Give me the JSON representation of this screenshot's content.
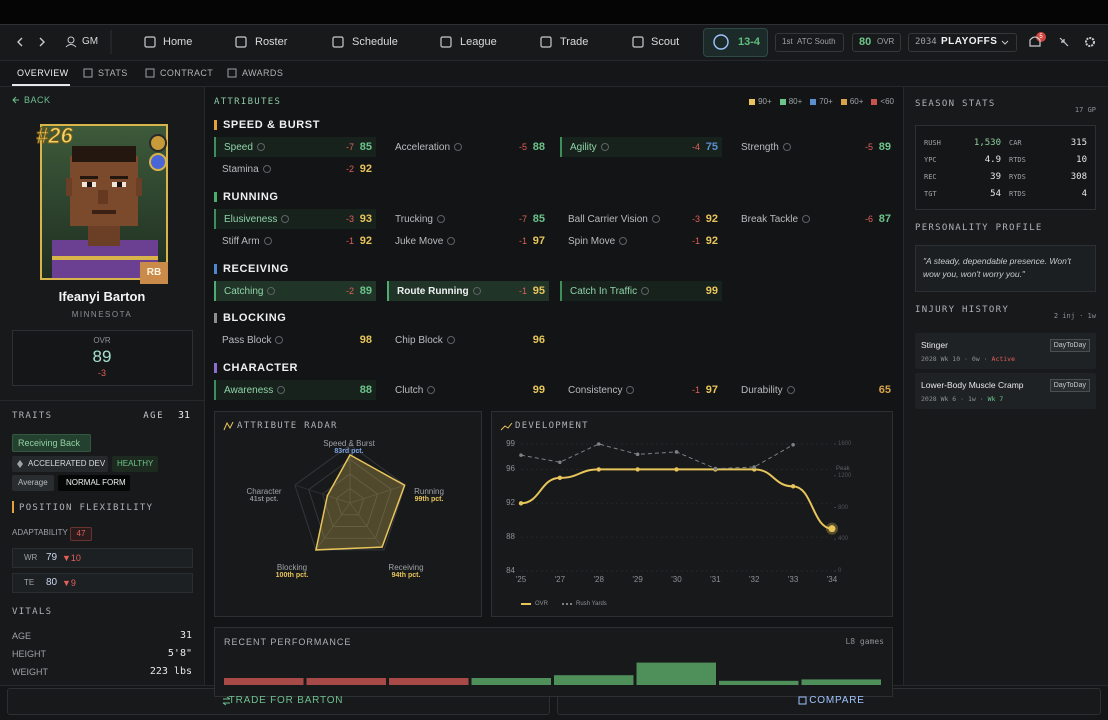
{
  "topbar": {
    "gm": "GM",
    "nav": [
      "Home",
      "Roster",
      "Schedule",
      "League",
      "Trade",
      "Scout"
    ],
    "record": "13-4",
    "standing_rank": "1st",
    "standing_division": "ATC South",
    "team_ovr": 80,
    "team_ovr_label": "OVR",
    "season": 2034,
    "phase": "PLAYOFFS",
    "notifications": 5
  },
  "tabs": [
    "OVERVIEW",
    "STATS",
    "CONTRACT",
    "AWARDS"
  ],
  "player": {
    "back": "BACK",
    "number": "#26",
    "position": "RB",
    "name": "Ifeanyi Barton",
    "team": "MINNESOTA",
    "ovr_label": "OVR",
    "ovr": 89,
    "ovr_delta": -3
  },
  "traits": {
    "title": "TRAITS",
    "age_label": "AGE",
    "age": 31,
    "tags": [
      "Receiving Back",
      "ACCELERATED DEV",
      "HEALTHY",
      "Average",
      "NORMAL FORM"
    ]
  },
  "position_flexibility": {
    "title": "POSITION FLEXIBILITY",
    "adaptability_label": "ADAPTABILITY",
    "adaptability": 47,
    "positions": [
      {
        "pos": "WR",
        "ovr": 79,
        "delta": "▼10"
      },
      {
        "pos": "TE",
        "ovr": 80,
        "delta": "▼9"
      }
    ]
  },
  "vitals": {
    "title": "VITALS",
    "rows": [
      [
        "AGE",
        "31"
      ],
      [
        "HEIGHT",
        "5'8\""
      ],
      [
        "WEIGHT",
        "223 lbs"
      ]
    ]
  },
  "attributes": {
    "title": "ATTRIBUTES",
    "legend": [
      {
        "value": 90,
        "label": "90+",
        "color": "#e8c55a"
      },
      {
        "value": 80,
        "label": "80+",
        "color": "#6cc48a"
      },
      {
        "value": 70,
        "label": "70+",
        "color": "#5b8fd0"
      },
      {
        "value": 60,
        "label": "60+",
        "color": "#d7a24a"
      },
      {
        "value": 60,
        "label": "<60",
        "color": "#c9544e"
      }
    ],
    "groups": [
      {
        "name": "SPEED & BURST",
        "color": "#e6a13a",
        "items": [
          {
            "name": "Speed",
            "delta": -7,
            "value": 85,
            "highlight": "soft"
          },
          {
            "name": "Acceleration",
            "delta": -5,
            "value": 88
          },
          {
            "name": "Agility",
            "delta": -4,
            "value": 75,
            "highlight": "soft"
          },
          {
            "name": "Strength",
            "delta": -5,
            "value": 89
          },
          {
            "name": "Stamina",
            "delta": -2,
            "value": 92
          }
        ]
      },
      {
        "name": "RUNNING",
        "color": "#4cae6b",
        "items": [
          {
            "name": "Elusiveness",
            "delta": -3,
            "value": 93,
            "highlight": "soft"
          },
          {
            "name": "Trucking",
            "delta": -7,
            "value": 85
          },
          {
            "name": "Ball Carrier Vision",
            "delta": -3,
            "value": 92
          },
          {
            "name": "Break Tackle",
            "delta": -6,
            "value": 87
          },
          {
            "name": "Stiff Arm",
            "delta": -1,
            "value": 92
          },
          {
            "name": "Juke Move",
            "delta": -1,
            "value": 97
          },
          {
            "name": "Spin Move",
            "delta": -1,
            "value": 92
          }
        ]
      },
      {
        "name": "RECEIVING",
        "color": "#4f86d1",
        "items": [
          {
            "name": "Catching",
            "delta": -2,
            "value": 89,
            "highlight": "strong"
          },
          {
            "name": "Route Running",
            "delta": -1,
            "value": 95,
            "highlight": "strong"
          },
          {
            "name": "Catch In Traffic",
            "value": 99,
            "highlight": "soft"
          }
        ]
      },
      {
        "name": "BLOCKING",
        "color": "#8a8f92",
        "items": [
          {
            "name": "Pass Block",
            "value": 98
          },
          {
            "name": "Chip Block",
            "value": 96
          }
        ]
      },
      {
        "name": "CHARACTER",
        "color": "#8a6fd1",
        "items": [
          {
            "name": "Awareness",
            "value": 88,
            "highlight": "soft"
          },
          {
            "name": "Clutch",
            "value": 99
          },
          {
            "name": "Consistency",
            "delta": -1,
            "value": 97
          },
          {
            "name": "Durability",
            "value": 65
          }
        ]
      }
    ]
  },
  "radar": {
    "type": "radar",
    "title": "ATTRIBUTE RADAR",
    "max": 100,
    "axes": [
      {
        "name": "Speed & Burst",
        "value": 83,
        "label": "83rd pct."
      },
      {
        "name": "Running",
        "value": 99,
        "label": "99th pct."
      },
      {
        "name": "Receiving",
        "value": 94,
        "label": "94th pct."
      },
      {
        "name": "Blocking",
        "value": 100,
        "label": "100th pct."
      },
      {
        "name": "Character",
        "value": 41,
        "label": "41st pct."
      }
    ]
  },
  "development": {
    "type": "line",
    "title": "DEVELOPMENT",
    "categories": [
      "'25",
      "'27",
      "'28",
      "'29",
      "'30",
      "'31",
      "'32",
      "'33",
      "'34"
    ],
    "series": [
      {
        "name": "OVR",
        "color": "#e8c55a",
        "values": [
          92,
          95,
          96,
          96,
          96,
          96,
          96,
          94,
          89
        ]
      },
      {
        "name": "Rush Yards",
        "color": "#7d8285",
        "axis": "y2",
        "values": [
          1460,
          1370,
          1600,
          1470,
          1500,
          1290,
          1310,
          1590,
          null
        ]
      }
    ],
    "ylim": [
      84,
      99
    ],
    "yticks": [
      84,
      88,
      92,
      96,
      99
    ],
    "y2lim": [
      0,
      1600
    ],
    "y2ticks": [
      0,
      400,
      800,
      1200,
      1600
    ],
    "annotation": "Peak"
  },
  "recent_performance": {
    "type": "bar",
    "title": "RECENT PERFORMANCE",
    "subtitle": "L8 games",
    "values": [
      -5,
      -5,
      -5,
      5,
      7,
      16,
      3,
      4
    ],
    "colors": {
      "positive": "#4f8f5a",
      "negative": "#a84a48"
    }
  },
  "season_stats": {
    "title": "SEASON STATS",
    "games": "17 GP",
    "rows": [
      [
        "RUSH",
        "1,530",
        "CAR",
        "315"
      ],
      [
        "YPC",
        "4.9",
        "RTDS",
        "10"
      ],
      [
        "REC",
        "39",
        "RYDS",
        "308"
      ],
      [
        "TGT",
        "54",
        "RTDS",
        "4"
      ]
    ]
  },
  "personality": {
    "title": "PERSONALITY PROFILE",
    "quote": "\"A steady, dependable presence. Won't wow you, won't worry you.\""
  },
  "injuries": {
    "title": "INJURY HISTORY",
    "summary": "2 inj · 1w",
    "items": [
      {
        "name": "Stinger",
        "meta": "2028 Wk 10 · 0w ·",
        "status": "Active",
        "status_color": "#e0605a",
        "badge": "DayToDay"
      },
      {
        "name": "Lower-Body Muscle Cramp",
        "meta": "2028 Wk 6 · 1w ·",
        "status": "Wk 7",
        "status_color": "#6cc48a",
        "badge": "DayToDay"
      }
    ]
  },
  "actions": {
    "trade": "TRADE FOR BARTON",
    "compare": "COMPARE"
  }
}
